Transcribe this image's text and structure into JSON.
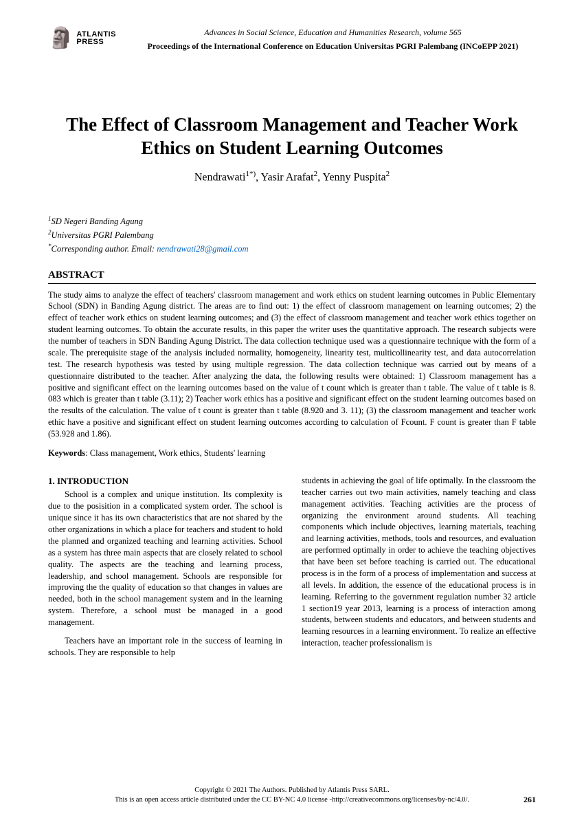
{
  "publisher": {
    "name_line1": "ATLANTIS",
    "name_line2": "PRESS",
    "icon": "🗿"
  },
  "header": {
    "series": "Advances in Social Science, Education and Humanities Research, volume 565",
    "proceedings": "Proceedings of the International Conference on Education Universitas PGRI Palembang (INCoEPP 2021)"
  },
  "title": "The Effect of Classroom Management and Teacher Work Ethics on Student Learning Outcomes",
  "authors_html": "Nendrawati<sup>1*)</sup>, Yasir Arafat<sup>2</sup>, Yenny Puspita<sup>2</sup>",
  "affiliations": {
    "a1_sup": "1",
    "a1": "SD Negeri Banding Agung",
    "a2_sup": "2",
    "a2": "Universitas PGRI Palembang",
    "corr_sup": "*",
    "corr_label": "Corresponding author. Email: ",
    "corr_email": "nendrawati28@gmail.com"
  },
  "abstract": {
    "heading": "ABSTRACT",
    "body": "The study aims to analyze the effect of teachers' classroom management and work ethics on student learning outcomes in Public Elementary School (SDN) in Banding Agung district. The areas are to find out: 1) the effect of classroom management on learning outcomes; 2) the effect of teacher work ethics on student learning outcomes; and (3) the effect of classroom management and teacher work ethics together on student learning outcomes. To obtain the accurate results, in this paper the writer uses the quantitative approach. The research subjects were the number of teachers in SDN Banding Agung District. The data collection technique used was a questionnaire technique with the form of a scale. The prerequisite stage of the analysis included normality, homogeneity, linearity test, multicollinearity test, and data autocorrelation test. The research hypothesis was tested by using multiple regression. The data collection technique was carried out by means of a questionnaire distributed to the teacher. After analyzing the data, the following results were obtained: 1) Classroom management has a positive and significant effect on the learning outcomes based on the value of t count which is greater than t table. The value of t table is 8. 083 which is greater than t table (3.11); 2) Teacher work ethics has a positive and significant effect on the student learning outcomes based on the results of the calculation. The value of t count is greater than t table (8.920 and 3. 11); (3) the classroom management and teacher work ethic have a positive and significant effect on student learning outcomes according to calculation of  Fcount. F count is greater than F table (53.928 and 1.86)."
  },
  "keywords": {
    "label": "Keywords",
    "text": ": Class management, Work ethics, Students' learning"
  },
  "section1": {
    "heading": "1.  INTRODUCTION",
    "p1": "School is a complex and unique institution. Its complexity is due to the posisition in a complicated system order. The school is unique since it has its own characteristics that are not shared by the other organizations in which a place for teachers and student to hold the planned and organized teaching and learning activities. School as a system has three main aspects that are closely related to school quality. The aspects are the teaching and learning process, leadership, and school management. Schools are responsible for improving the the quality of education so that changes in values are needed, both in the school management system and in the learning system. Therefore, a school must be managed in a good management.",
    "p2": "Teachers have an important role in the success of learning in schools. They are responsible to help",
    "p3": "students in achieving the goal of life optimally. In the classroom the teacher carries out two main activities, namely teaching and class management activities. Teaching activities are the process of organizing the environment around students. All teaching components which include objectives, learning materials, teaching and learning activities, methods, tools and resources, and evaluation are performed optimally in order to achieve the teaching objectives that have been set before teaching is carried out. The educational process is in the form of a process of implementation and success at all levels. In addition, the essence of the educational process is in learning. Referring to the government regulation number 32 article 1 section19 year 2013, learning is a process of interaction among students, between students and educators, and between students and learning resources in a learning environment. To realize an effective interaction, teacher professionalism is"
  },
  "footer": {
    "line1": "Copyright © 2021 The Authors. Published by Atlantis Press SARL.",
    "line2": "This is an open access article distributed under the CC BY-NC 4.0 license -http://creativecommons.org/licenses/by-nc/4.0/.",
    "page": "261"
  },
  "colors": {
    "link": "#0563c1",
    "text": "#000000",
    "background": "#ffffff"
  }
}
